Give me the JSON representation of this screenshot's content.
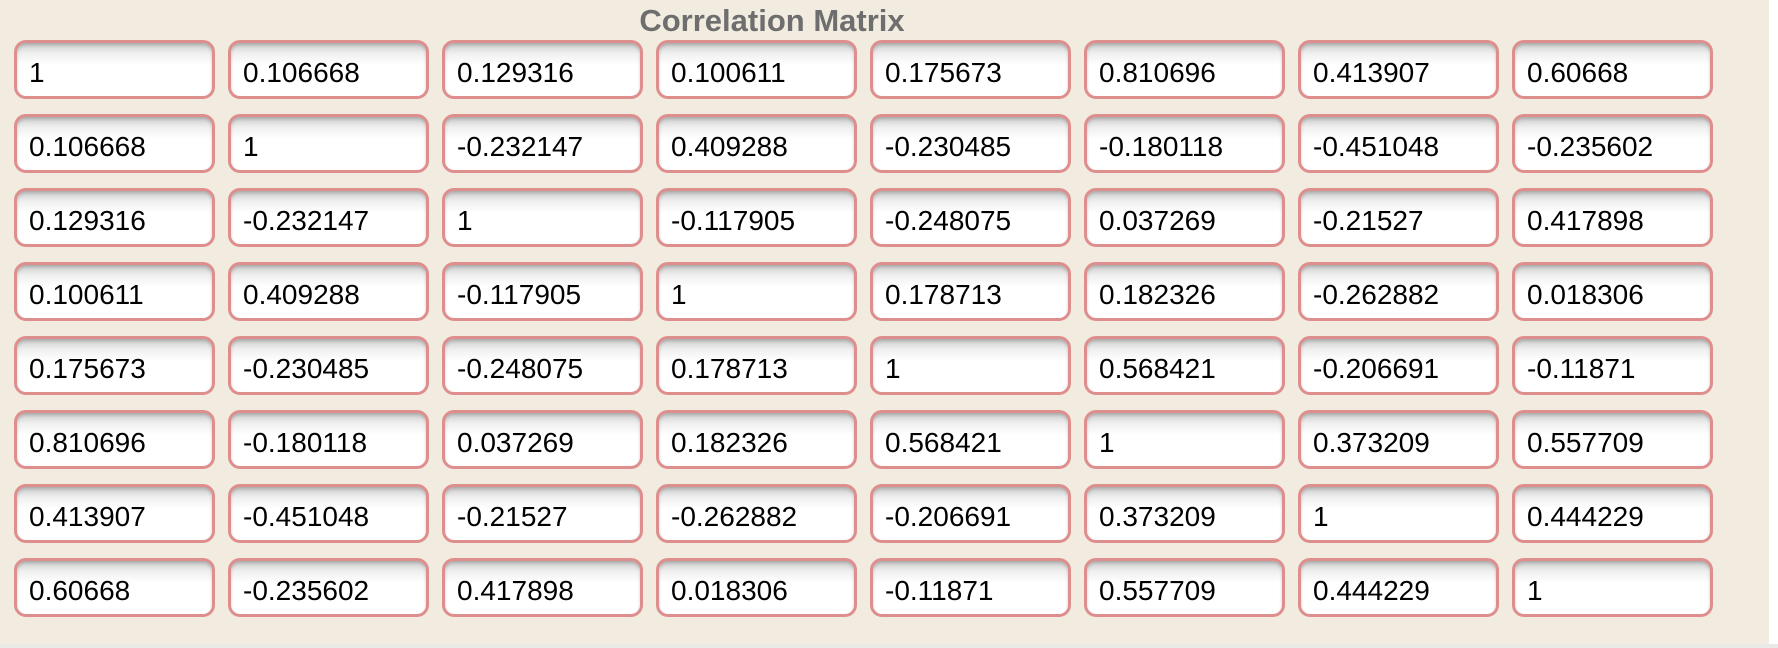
{
  "title": "Correlation Matrix",
  "colors": {
    "background": "#f1ecdf",
    "cell_border": "#df8e8e",
    "cell_background": "#ffffff",
    "title_color": "#6e6e6e",
    "cell_text": "#000000",
    "right_edge_strip": "#ffffff",
    "bottom_edge_strip": "#e9e9e7"
  },
  "chart_data": {
    "type": "table",
    "title": "Correlation Matrix",
    "rows": 8,
    "cols": 8,
    "matrix": [
      [
        "1",
        "0.106668",
        "0.129316",
        "0.100611",
        "0.175673",
        "0.810696",
        "0.413907",
        "0.60668"
      ],
      [
        "0.106668",
        "1",
        "-0.232147",
        "0.409288",
        "-0.230485",
        "-0.180118",
        "-0.451048",
        "-0.235602"
      ],
      [
        "0.129316",
        "-0.232147",
        "1",
        "-0.117905",
        "-0.248075",
        "0.037269",
        "-0.21527",
        "0.417898"
      ],
      [
        "0.100611",
        "0.409288",
        "-0.117905",
        "1",
        "0.178713",
        "0.182326",
        "-0.262882",
        "0.018306"
      ],
      [
        "0.175673",
        "-0.230485",
        "-0.248075",
        "0.178713",
        "1",
        "0.568421",
        "-0.206691",
        "-0.11871"
      ],
      [
        "0.810696",
        "-0.180118",
        "0.037269",
        "0.182326",
        "0.568421",
        "1",
        "0.373209",
        "0.557709"
      ],
      [
        "0.413907",
        "-0.451048",
        "-0.21527",
        "-0.262882",
        "-0.206691",
        "0.373209",
        "1",
        "0.444229"
      ],
      [
        "0.60668",
        "-0.235602",
        "0.417898",
        "0.018306",
        "-0.11871",
        "0.557709",
        "0.444229",
        "1"
      ]
    ]
  }
}
